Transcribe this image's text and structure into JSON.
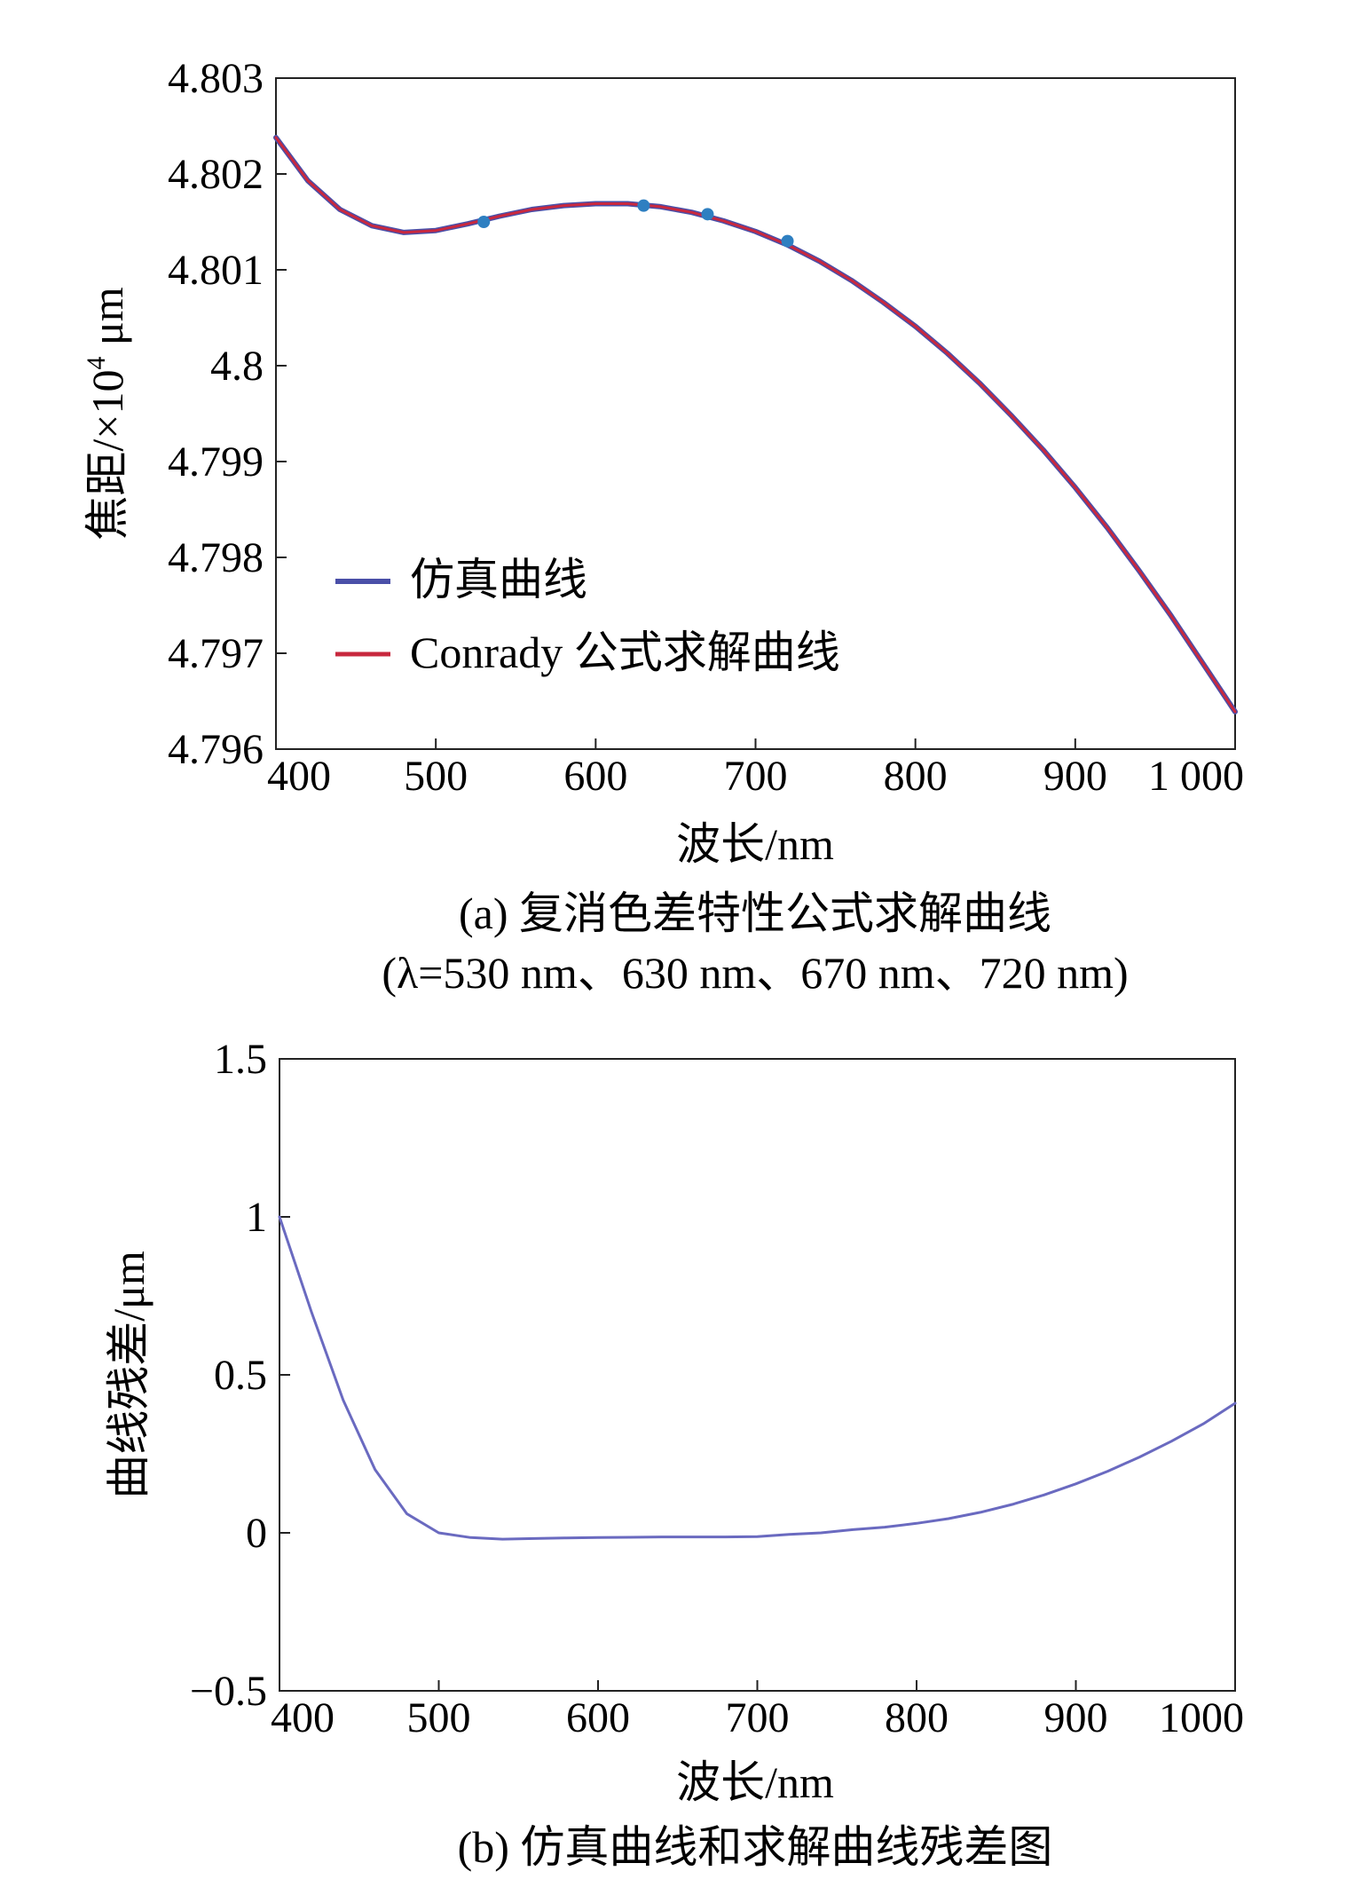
{
  "chart_data": [
    {
      "type": "line",
      "ylabel_main": "焦距/×10",
      "ylabel_exp": "4",
      "ylabel_unit": " μm",
      "xlabel": "波长/nm",
      "caption_line1": "(a) 复消色差特性公式求解曲线",
      "caption_line2": "(λ=530 nm、630 nm、670 nm、720 nm)",
      "xlim": [
        400,
        1000
      ],
      "ylim": [
        4.796,
        4.803
      ],
      "xticks": [
        400,
        500,
        600,
        700,
        800,
        900,
        1000
      ],
      "xtick_labels": [
        "400",
        "500",
        "600",
        "700",
        "800",
        "900",
        "1 000"
      ],
      "yticks": [
        4.796,
        4.797,
        4.798,
        4.799,
        4.8,
        4.801,
        4.802,
        4.803
      ],
      "ytick_labels": [
        "4.796",
        "4.797",
        "4.798",
        "4.799",
        "4.8",
        "4.801",
        "4.802",
        "4.803"
      ],
      "legend": {
        "position": "lower-left",
        "entries": [
          "仿真曲线",
          "Conrady 公式求解曲线"
        ]
      },
      "series": [
        {
          "name": "仿真曲线",
          "color": "#4a4fa8",
          "x": [
            400,
            420,
            440,
            460,
            480,
            500,
            520,
            540,
            560,
            580,
            600,
            620,
            640,
            660,
            680,
            700,
            720,
            740,
            760,
            780,
            800,
            820,
            840,
            860,
            880,
            900,
            920,
            940,
            960,
            980,
            1000
          ],
          "y": [
            4.80238,
            4.80193,
            4.80163,
            4.80146,
            4.80139,
            4.80141,
            4.80148,
            4.80156,
            4.80163,
            4.80167,
            4.80169,
            4.80169,
            4.80166,
            4.8016,
            4.80151,
            4.8014,
            4.80126,
            4.80109,
            4.80089,
            4.80066,
            4.80041,
            4.80013,
            4.79982,
            4.79948,
            4.79912,
            4.79873,
            4.79831,
            4.79786,
            4.79739,
            4.79689,
            4.79639
          ]
        },
        {
          "name": "Conrady 公式求解曲线",
          "color": "#c8283e",
          "x": [
            400,
            420,
            440,
            460,
            480,
            500,
            520,
            540,
            560,
            580,
            600,
            620,
            640,
            660,
            680,
            700,
            720,
            740,
            760,
            780,
            800,
            820,
            840,
            860,
            880,
            900,
            920,
            940,
            960,
            980,
            1000
          ],
          "y": [
            4.80238,
            4.80193,
            4.80163,
            4.80146,
            4.80139,
            4.80141,
            4.80148,
            4.80156,
            4.80163,
            4.80167,
            4.80169,
            4.80169,
            4.80166,
            4.8016,
            4.80151,
            4.8014,
            4.80126,
            4.80109,
            4.80089,
            4.80066,
            4.80041,
            4.80013,
            4.79982,
            4.79948,
            4.79912,
            4.79873,
            4.79831,
            4.79786,
            4.79739,
            4.79689,
            4.79639
          ]
        }
      ],
      "markers": {
        "color": "#2e7fc1",
        "x": [
          530,
          630,
          670,
          720
        ],
        "y": [
          4.8015,
          4.80167,
          4.80158,
          4.8013
        ]
      }
    },
    {
      "type": "line",
      "ylabel": "曲线残差/μm",
      "xlabel": "波长/nm",
      "caption": "(b) 仿真曲线和求解曲线残差图",
      "xlim": [
        400,
        1000
      ],
      "ylim": [
        -0.5,
        1.5
      ],
      "xticks": [
        400,
        500,
        600,
        700,
        800,
        900,
        1000
      ],
      "xtick_labels": [
        "400",
        "500",
        "600",
        "700",
        "800",
        "900",
        "1000"
      ],
      "yticks": [
        -0.5,
        0,
        0.5,
        1,
        1.5
      ],
      "ytick_labels": [
        "−0.5",
        "0",
        "0.5",
        "1",
        "1.5"
      ],
      "series": [
        {
          "color": "#6a6ac0",
          "x": [
            400,
            420,
            440,
            460,
            480,
            500,
            520,
            540,
            560,
            580,
            600,
            620,
            640,
            660,
            680,
            700,
            720,
            740,
            760,
            780,
            800,
            820,
            840,
            860,
            880,
            900,
            920,
            940,
            960,
            980,
            1000
          ],
          "y": [
            1.0,
            0.7,
            0.42,
            0.2,
            0.06,
            0.0,
            -0.015,
            -0.02,
            -0.018,
            -0.016,
            -0.015,
            -0.014,
            -0.013,
            -0.013,
            -0.013,
            -0.012,
            -0.005,
            0.0,
            0.01,
            0.018,
            0.03,
            0.045,
            0.065,
            0.09,
            0.12,
            0.155,
            0.195,
            0.24,
            0.29,
            0.345,
            0.41
          ]
        }
      ]
    }
  ]
}
